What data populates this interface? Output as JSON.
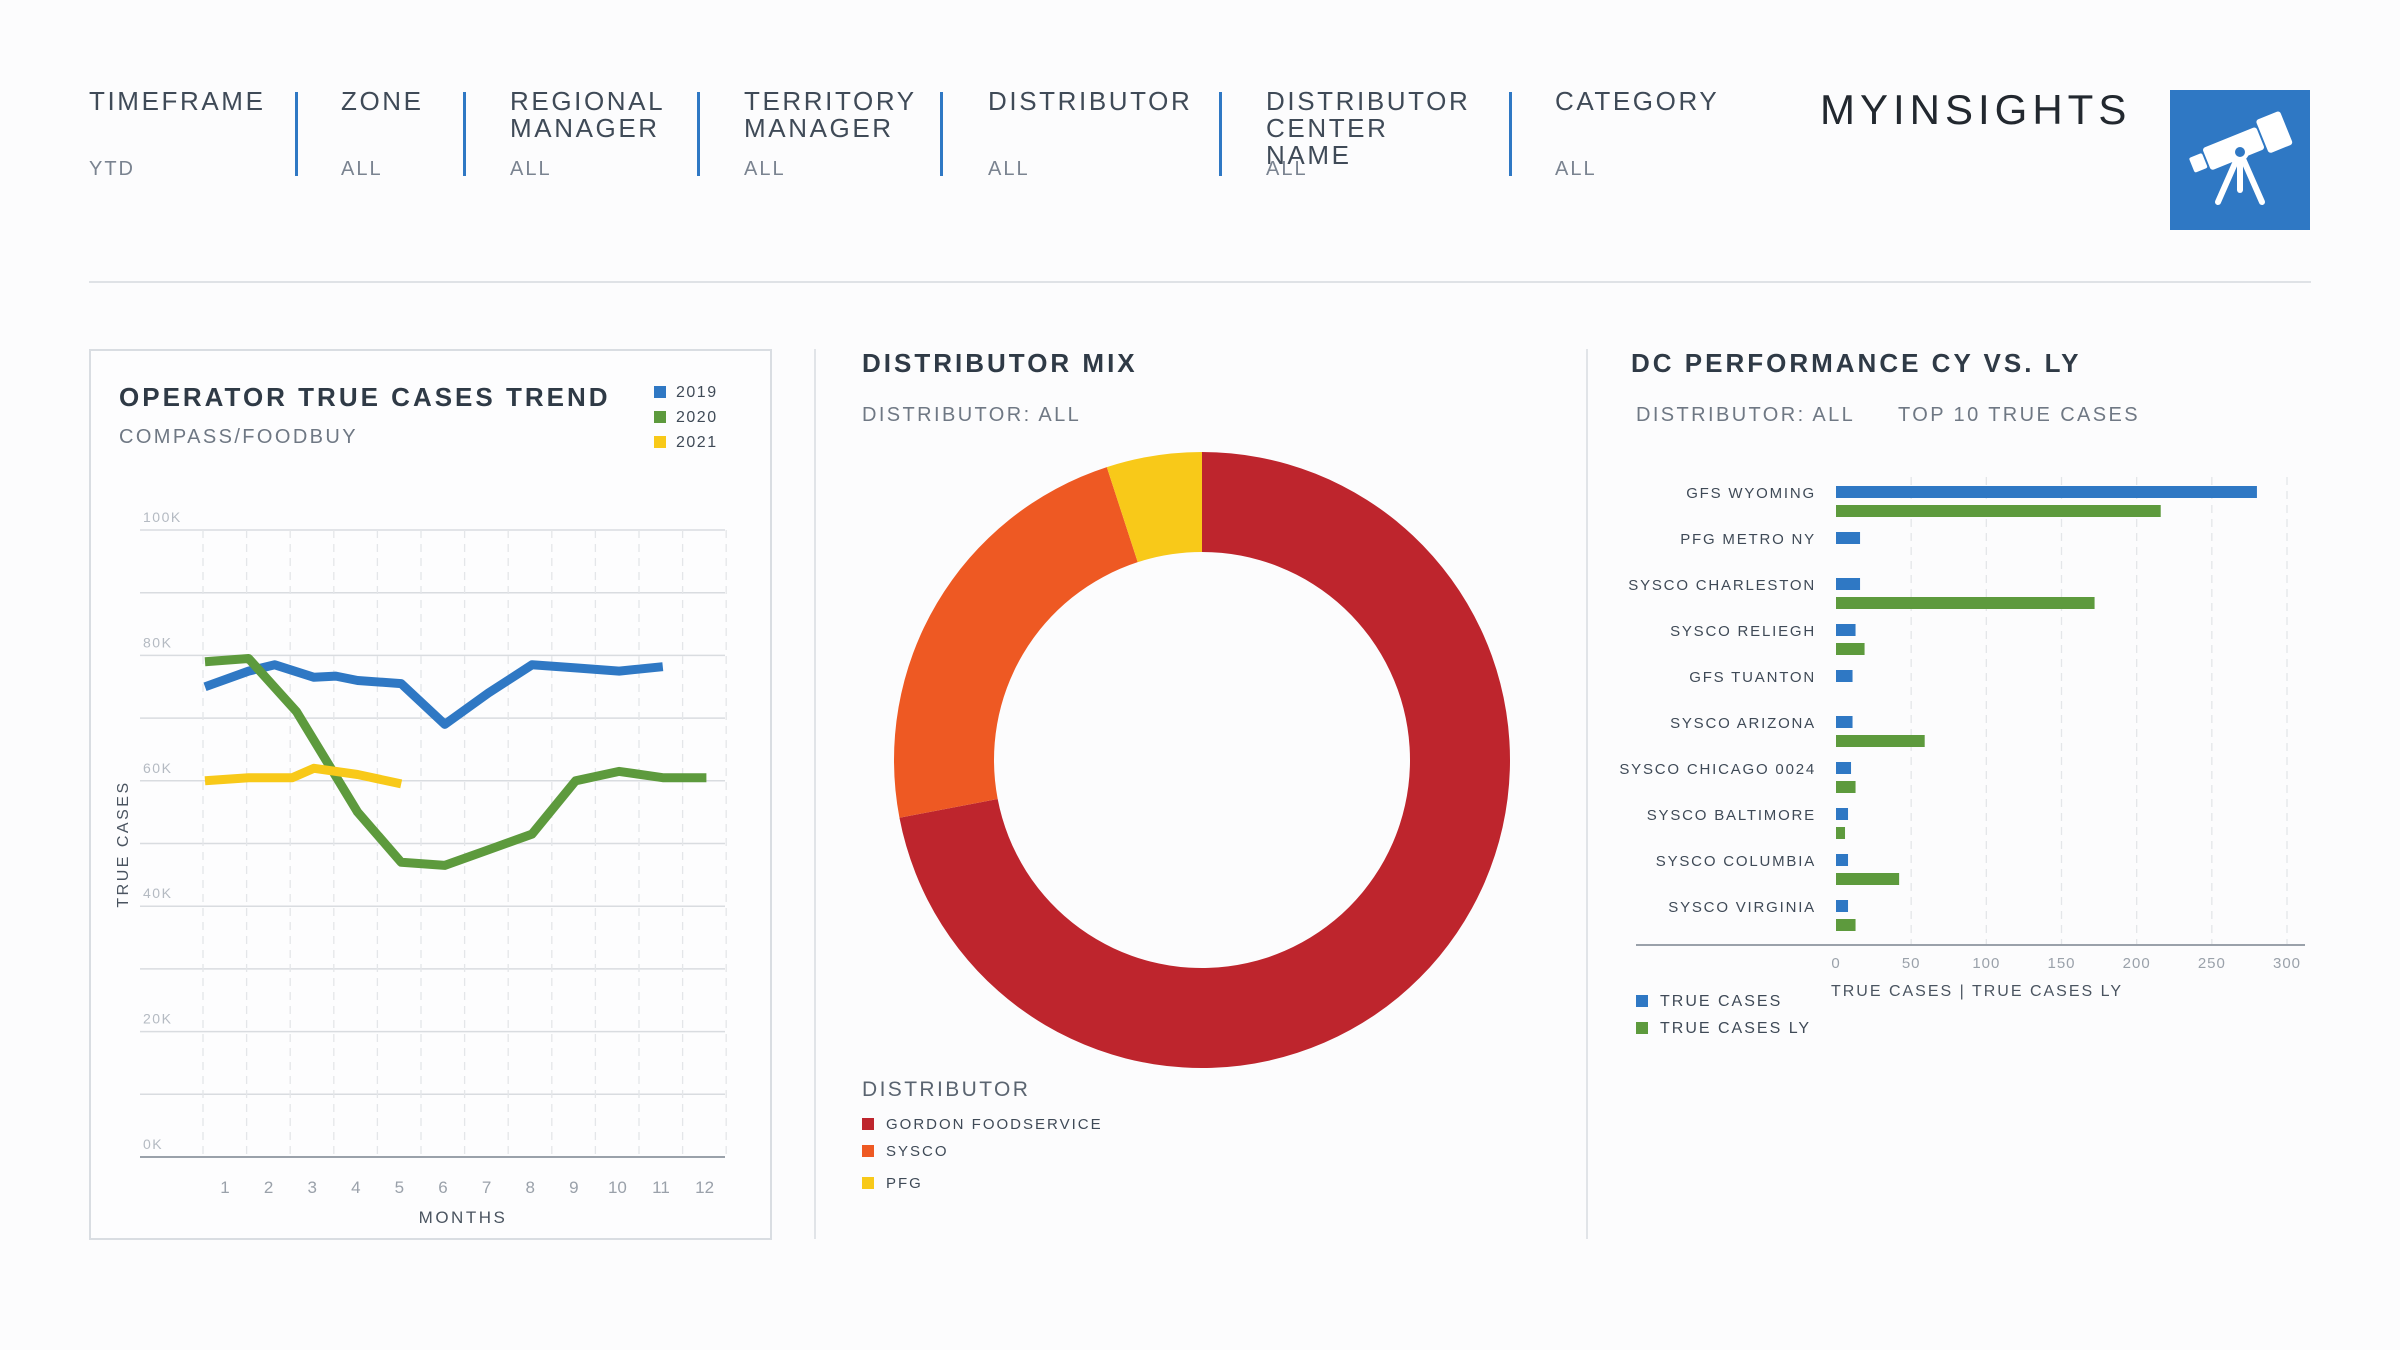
{
  "filters": [
    {
      "label": "TIMEFRAME",
      "value": "YTD"
    },
    {
      "label": "ZONE",
      "value": "ALL"
    },
    {
      "label": "REGIONAL\nMANAGER",
      "value": "ALL"
    },
    {
      "label": "TERRITORY\nMANAGER",
      "value": "ALL"
    },
    {
      "label": "DISTRIBUTOR",
      "value": "ALL"
    },
    {
      "label": "DISTRIBUTOR\nCENTER NAME",
      "value": "ALL"
    },
    {
      "label": "CATEGORY",
      "value": "ALL"
    }
  ],
  "brand": "MYINSIGHTS",
  "logo_icon": "telescope-icon",
  "colors": {
    "blue": "#2f78c4",
    "green": "#5d9a3d",
    "yellow": "#f8c919",
    "red": "#be252d",
    "orange": "#ee5923"
  },
  "trend": {
    "title": "OPERATOR TRUE CASES TREND",
    "subtitle": "COMPASS/FOODBUY",
    "legend": [
      "2019",
      "2020",
      "2021"
    ]
  },
  "mix": {
    "title": "DISTRIBUTOR MIX",
    "subtitle": "DISTRIBUTOR: ALL",
    "legend_title": "DISTRIBUTOR",
    "legend": [
      "GORDON FOODSERVICE",
      "SYSCO",
      "PFG"
    ]
  },
  "dc": {
    "title": "DC PERFORMANCE CY VS. LY",
    "subtitle_left": "DISTRIBUTOR: ALL",
    "subtitle_right": "TOP 10 TRUE CASES",
    "legend": [
      "TRUE CASES",
      "TRUE CASES LY"
    ]
  },
  "chart_data": [
    {
      "type": "line",
      "title": "OPERATOR TRUE CASES TREND",
      "subtitle": "COMPASS/FOODBUY",
      "xlabel": "MONTHS",
      "ylabel": "TRUE CASES",
      "x": [
        1,
        2,
        3,
        4,
        5,
        6,
        7,
        8,
        9,
        10,
        11,
        12
      ],
      "x_ticks": [
        "1",
        "2",
        "3",
        "4",
        "5",
        "6",
        "7",
        "8",
        "9",
        "10",
        "11",
        "12"
      ],
      "y_ticks": [
        "100K",
        "80K",
        "60K",
        "40K",
        "20K",
        "0K"
      ],
      "ylim": [
        0,
        100000
      ],
      "grid": true,
      "legend_position": "top-right",
      "series": [
        {
          "name": "2019",
          "color": "#2f78c4",
          "points": [
            [
              0.5,
              75000
            ],
            [
              1.5,
              77500
            ],
            [
              2.1,
              78500
            ],
            [
              3,
              76500
            ],
            [
              3.5,
              76700
            ],
            [
              4,
              76000
            ],
            [
              5,
              75500
            ],
            [
              6,
              69000
            ],
            [
              7,
              74000
            ],
            [
              8,
              78500
            ],
            [
              9,
              78000
            ],
            [
              10,
              77500
            ],
            [
              11,
              78200
            ]
          ]
        },
        {
          "name": "2020",
          "color": "#5d9a3d",
          "points": [
            [
              0.5,
              79000
            ],
            [
              1.5,
              79500
            ],
            [
              2.6,
              71000
            ],
            [
              4,
              55000
            ],
            [
              5,
              47000
            ],
            [
              6,
              46500
            ],
            [
              7,
              49000
            ],
            [
              8,
              51500
            ],
            [
              9,
              60000
            ],
            [
              10,
              61500
            ],
            [
              11,
              60500
            ],
            [
              12,
              60500
            ]
          ]
        },
        {
          "name": "2021",
          "color": "#f8c919",
          "points": [
            [
              0.5,
              60000
            ],
            [
              1.5,
              60500
            ],
            [
              2.5,
              60500
            ],
            [
              3,
              62000
            ],
            [
              4,
              61000
            ],
            [
              5,
              59500
            ]
          ]
        }
      ]
    },
    {
      "type": "pie",
      "title": "DISTRIBUTOR MIX",
      "subtitle": "DISTRIBUTOR: ALL",
      "donut": true,
      "legend_position": "bottom-left",
      "labels": [
        "GORDON FOODSERVICE",
        "SYSCO",
        "PFG"
      ],
      "values": [
        72,
        23,
        5
      ],
      "colors": [
        "#be252d",
        "#ee5923",
        "#f8c919"
      ]
    },
    {
      "type": "bar",
      "orientation": "horizontal",
      "title": "DC PERFORMANCE CY VS. LY",
      "xlabel": "TRUE CASES | TRUE CASES LY",
      "xlim": [
        0,
        300
      ],
      "x_ticks": [
        0,
        50,
        100,
        150,
        200,
        250,
        300
      ],
      "legend_position": "bottom-left",
      "categories": [
        "GFS WYOMING",
        "PFG METRO NY",
        "SYSCO CHARLESTON",
        "SYSCO RELIEGH",
        "GFS TUANTON",
        "SYSCO ARIZONA",
        "SYSCO CHICAGO 0024",
        "SYSCO BALTIMORE",
        "SYSCO COLUMBIA",
        "SYSCO VIRGINIA"
      ],
      "series": [
        {
          "name": "TRUE CASES",
          "color": "#2f78c4",
          "values": [
            280,
            16,
            16,
            13,
            11,
            11,
            10,
            8,
            8,
            8
          ]
        },
        {
          "name": "TRUE CASES LY",
          "color": "#5d9a3d",
          "values": [
            216,
            0,
            172,
            19,
            0,
            59,
            13,
            6,
            42,
            13
          ]
        }
      ]
    }
  ]
}
